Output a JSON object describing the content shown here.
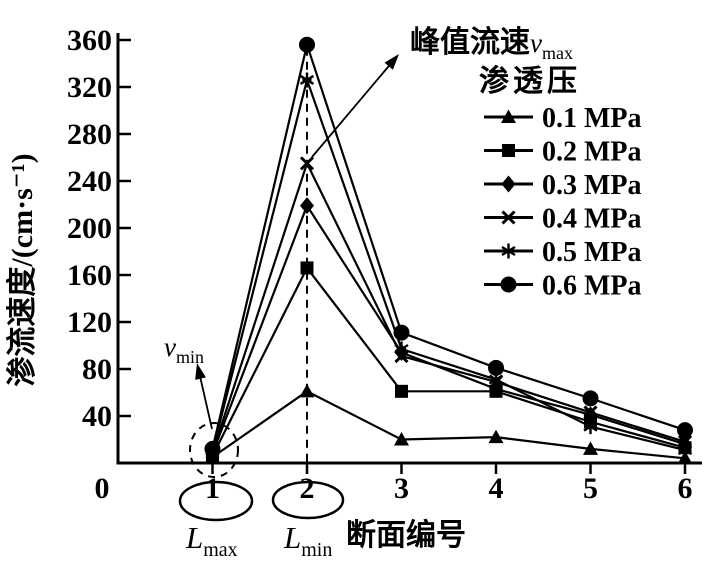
{
  "figure": {
    "background": "#ffffff",
    "ink_color": "#000000"
  },
  "chart_data": {
    "type": "line",
    "title": "",
    "xlabel": "断面编号",
    "ylabel": "渗流速度/(cm·s⁻¹)",
    "xlim": [
      0,
      6
    ],
    "ylim": [
      0,
      360
    ],
    "x_ticks": [
      0,
      1,
      2,
      3,
      4,
      5,
      6
    ],
    "y_ticks": [
      40,
      80,
      120,
      160,
      200,
      240,
      280,
      320,
      360
    ],
    "grid": false,
    "legend_title": "渗透压",
    "legend_position": "top-right",
    "x": [
      1,
      2,
      3,
      4,
      5,
      6
    ],
    "series": [
      {
        "name": "0.1 MPa",
        "marker": "triangle",
        "values": [
          5,
          61,
          20,
          22,
          12,
          4
        ]
      },
      {
        "name": "0.2 MPa",
        "marker": "square",
        "values": [
          6,
          166,
          61,
          61,
          35,
          13
        ]
      },
      {
        "name": "0.3 MPa",
        "marker": "diamond",
        "values": [
          8,
          219,
          94,
          63,
          41,
          16
        ]
      },
      {
        "name": "0.4 MPa",
        "marker": "x",
        "values": [
          9,
          255,
          91,
          69,
          43,
          18
        ]
      },
      {
        "name": "0.5 MPa",
        "marker": "star",
        "values": [
          10,
          326,
          97,
          71,
          31,
          11
        ]
      },
      {
        "name": "0.6 MPa",
        "marker": "circle",
        "values": [
          12,
          356,
          111,
          81,
          55,
          28
        ]
      }
    ],
    "annotations": {
      "vmax": {
        "text": "峰值流速",
        "var": "v",
        "sub": "max",
        "points_at_x": 2
      },
      "vmin": {
        "var": "v",
        "sub": "min",
        "points_at_x": 1
      },
      "lmax": {
        "var": "L",
        "sub": "max",
        "under_x_tick": 1
      },
      "lmin": {
        "var": "L",
        "sub": "min",
        "under_x_tick": 2
      },
      "dashed_vertical_line_at_x": 2,
      "dashed_ellipse_at_x": 1,
      "circled_x_ticks": [
        1,
        2
      ]
    }
  }
}
